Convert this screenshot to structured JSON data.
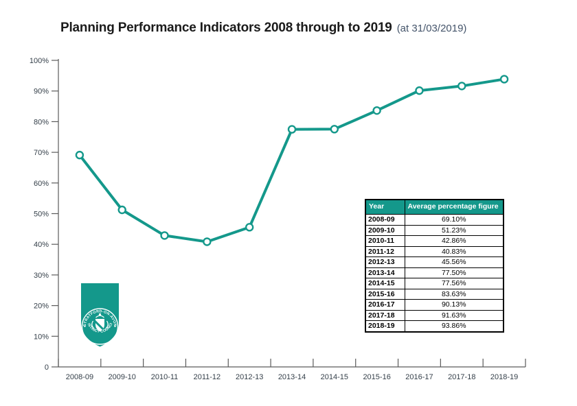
{
  "header": {
    "title": "Planning Performance Indicators 2008 through to 2019",
    "suffix": "(at 31/03/2019)"
  },
  "colors": {
    "teal": "#14988b",
    "axis": "#5a5a5a",
    "tick_label": "#333e48",
    "title_text": "#1b1b1b",
    "title_suffix": "#44546a"
  },
  "chart_data": {
    "type": "line",
    "title": "Planning Performance Indicators 2008 through to 2019 (at 31/03/2019)",
    "categories": [
      "2008-09",
      "2009-10",
      "2010-11",
      "2011-12",
      "2012-13",
      "2013-14",
      "2014-15",
      "2015-16",
      "2016-17",
      "2017-18",
      "2018-19"
    ],
    "series": [
      {
        "name": "Average percentage figure",
        "values": [
          69.1,
          51.23,
          42.86,
          40.83,
          45.56,
          77.5,
          77.56,
          83.63,
          90.13,
          91.63,
          93.86
        ]
      }
    ],
    "xlabel": "",
    "ylabel": "",
    "ylim": [
      0,
      100
    ],
    "y_ticks": [
      {
        "value": 0,
        "label": "0"
      },
      {
        "value": 10,
        "label": "10%"
      },
      {
        "value": 20,
        "label": "20%"
      },
      {
        "value": 30,
        "label": "30%"
      },
      {
        "value": 40,
        "label": "40%"
      },
      {
        "value": 50,
        "label": "50%"
      },
      {
        "value": 60,
        "label": "60%"
      },
      {
        "value": 70,
        "label": "70%"
      },
      {
        "value": 80,
        "label": "80%"
      },
      {
        "value": 90,
        "label": "90%"
      },
      {
        "value": 100,
        "label": "100%"
      }
    ],
    "grid": false,
    "legend": "none",
    "line_color": "#14988b",
    "marker": "open-circle"
  },
  "table": {
    "headers": [
      "Year",
      "Average percentage figure"
    ],
    "rows": [
      [
        "2008-09",
        "69.10%"
      ],
      [
        "2009-10",
        "51.23%"
      ],
      [
        "2010-11",
        "42.86%"
      ],
      [
        "2011-12",
        "40.83%"
      ],
      [
        "2012-13",
        "45.56%"
      ],
      [
        "2013-14",
        "77.50%"
      ],
      [
        "2014-15",
        "77.56%"
      ],
      [
        "2015-16",
        "83.63%"
      ],
      [
        "2016-17",
        "90.13%"
      ],
      [
        "2017-18",
        "91.63%"
      ],
      [
        "2018-19",
        "93.86%"
      ]
    ]
  },
  "logo": {
    "arc_top": "STRATFORD-ON-AVON",
    "arc_bottom": "DISTRICT COUNCIL"
  }
}
